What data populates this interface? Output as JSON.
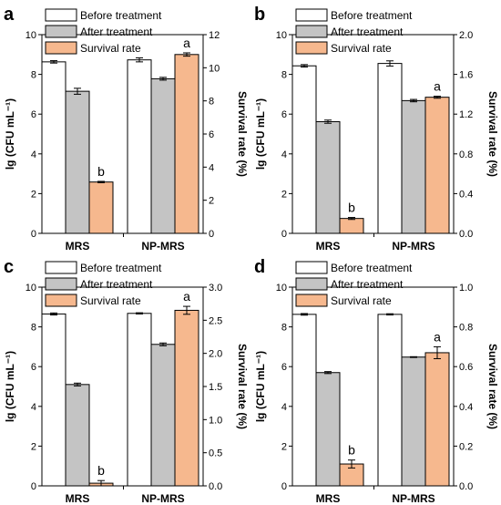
{
  "colors": {
    "before": "#ffffff",
    "after": "#c4c4c4",
    "survival": "#f6b88e",
    "stroke": "#000000"
  },
  "chart_data": [
    {
      "panel_label": "a",
      "type": "bar",
      "categories": [
        "MRS",
        "NP-MRS"
      ],
      "legend": [
        "Before treatment",
        "After treatment",
        "Survival rate"
      ],
      "ylabel": "lg (CFU mL⁻¹)",
      "ylabel2": "Survival rate (%)",
      "ylim": [
        0,
        10
      ],
      "yticks": [
        "0",
        "2",
        "4",
        "6",
        "8",
        "10"
      ],
      "ylim2": [
        0,
        12
      ],
      "yticks2": [
        "0",
        "2",
        "4",
        "6",
        "8",
        "10",
        "12"
      ],
      "series": [
        {
          "name": "Before treatment",
          "axis": "left",
          "values": [
            8.63,
            8.73
          ],
          "errors": [
            0.06,
            0.1
          ]
        },
        {
          "name": "After treatment",
          "axis": "left",
          "values": [
            7.15,
            7.78
          ],
          "errors": [
            0.15,
            0.07
          ]
        },
        {
          "name": "Survival rate",
          "axis": "right",
          "values": [
            3.1,
            10.8
          ],
          "errors": [
            0.04,
            0.1
          ]
        }
      ],
      "significance": [
        "b",
        "a"
      ]
    },
    {
      "panel_label": "b",
      "type": "bar",
      "categories": [
        "MRS",
        "NP-MRS"
      ],
      "legend": [
        "Before treatment",
        "After treatment",
        "Survival rate"
      ],
      "ylabel": "lg (CFU mL⁻¹)",
      "ylabel2": "Survival rate (%)",
      "ylim": [
        0,
        10
      ],
      "yticks": [
        "0",
        "2",
        "4",
        "6",
        "8",
        "10"
      ],
      "ylim2": [
        0,
        2.0
      ],
      "yticks2": [
        "0.0",
        "0.4",
        "0.8",
        "1.2",
        "1.6",
        "2.0"
      ],
      "series": [
        {
          "name": "Before treatment",
          "axis": "left",
          "values": [
            8.43,
            8.55
          ],
          "errors": [
            0.06,
            0.13
          ]
        },
        {
          "name": "After treatment",
          "axis": "left",
          "values": [
            5.62,
            6.68
          ],
          "errors": [
            0.08,
            0.06
          ]
        },
        {
          "name": "Survival rate",
          "axis": "right",
          "values": [
            0.15,
            1.37
          ],
          "errors": [
            0.01,
            0.01
          ]
        }
      ],
      "significance": [
        "b",
        "a"
      ]
    },
    {
      "panel_label": "c",
      "type": "bar",
      "categories": [
        "MRS",
        "NP-MRS"
      ],
      "legend": [
        "Before treatment",
        "After treatment",
        "Survival rate"
      ],
      "ylabel": "lg (CFU mL⁻¹)",
      "ylabel2": "Survival rate (%)",
      "ylim": [
        0,
        10
      ],
      "yticks": [
        "0",
        "2",
        "4",
        "6",
        "8",
        "10"
      ],
      "ylim2": [
        0,
        3.0
      ],
      "yticks2": [
        "0.0",
        "0.5",
        "1.0",
        "1.5",
        "2.0",
        "2.5",
        "3.0"
      ],
      "series": [
        {
          "name": "Before treatment",
          "axis": "left",
          "values": [
            8.65,
            8.68
          ],
          "errors": [
            0.05,
            0.03
          ]
        },
        {
          "name": "After treatment",
          "axis": "left",
          "values": [
            5.1,
            7.12
          ],
          "errors": [
            0.07,
            0.07
          ]
        },
        {
          "name": "Survival rate",
          "axis": "right",
          "values": [
            0.04,
            2.65
          ],
          "errors": [
            0.04,
            0.06
          ]
        }
      ],
      "significance": [
        "b",
        "a"
      ]
    },
    {
      "panel_label": "d",
      "type": "bar",
      "categories": [
        "MRS",
        "NP-MRS"
      ],
      "legend": [
        "Before treatment",
        "After treatment",
        "Survival rate"
      ],
      "ylabel": "lg (CFU mL⁻¹)",
      "ylabel2": "Survival rate (%)",
      "ylim": [
        0,
        10
      ],
      "yticks": [
        "0",
        "2",
        "4",
        "6",
        "8",
        "10"
      ],
      "ylim2": [
        0,
        1.0
      ],
      "yticks2": [
        "0.0",
        "0.2",
        "0.4",
        "0.6",
        "0.8",
        "1.0"
      ],
      "series": [
        {
          "name": "Before treatment",
          "axis": "left",
          "values": [
            8.63,
            8.63
          ],
          "errors": [
            0.04,
            0.03
          ]
        },
        {
          "name": "After treatment",
          "axis": "left",
          "values": [
            5.7,
            6.48
          ],
          "errors": [
            0.05,
            0.02
          ]
        },
        {
          "name": "Survival rate",
          "axis": "right",
          "values": [
            0.11,
            0.67
          ],
          "errors": [
            0.02,
            0.03
          ]
        }
      ],
      "significance": [
        "b",
        "a"
      ]
    }
  ]
}
